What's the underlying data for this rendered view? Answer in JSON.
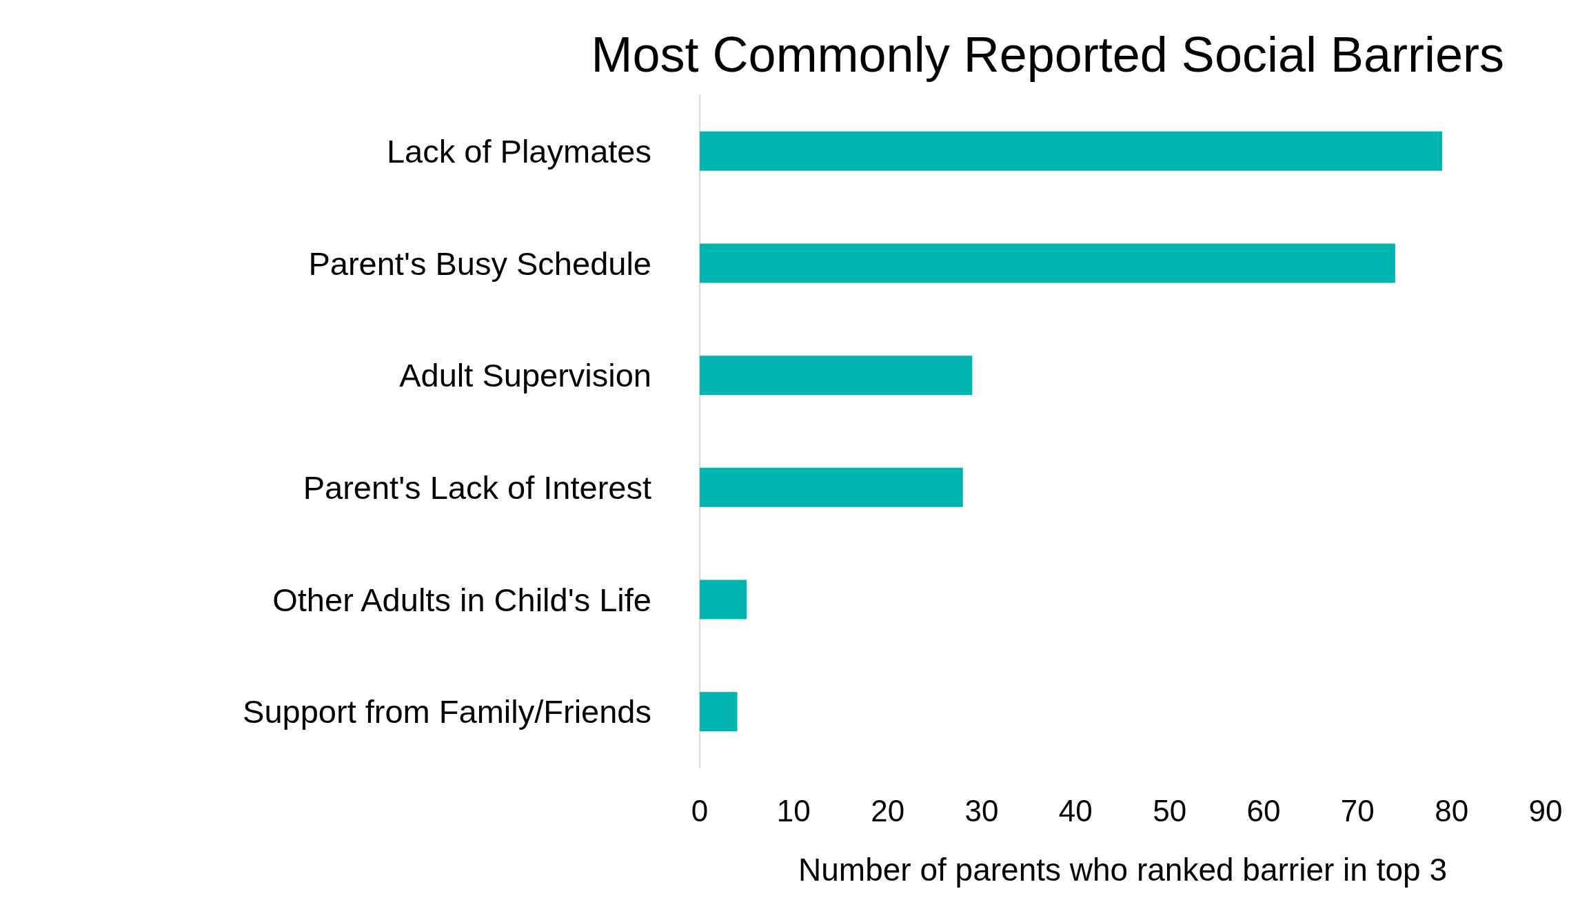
{
  "chart_data": {
    "type": "bar",
    "orientation": "horizontal",
    "title": "Most Commonly Reported Social Barriers",
    "xlabel": "Number of parents who ranked barrier in top 3",
    "categories": [
      "Lack of Playmates",
      "Parent's Busy Schedule",
      "Adult Supervision",
      "Parent's Lack of Interest",
      "Other Adults in Child's Life",
      "Support from Family/Friends"
    ],
    "values": [
      79,
      74,
      29,
      28,
      5,
      4
    ],
    "color": "#00b5b0",
    "xlim": [
      0,
      90
    ],
    "xticks": [
      0,
      10,
      20,
      30,
      40,
      50,
      60,
      70,
      80,
      90
    ],
    "grid": false
  }
}
